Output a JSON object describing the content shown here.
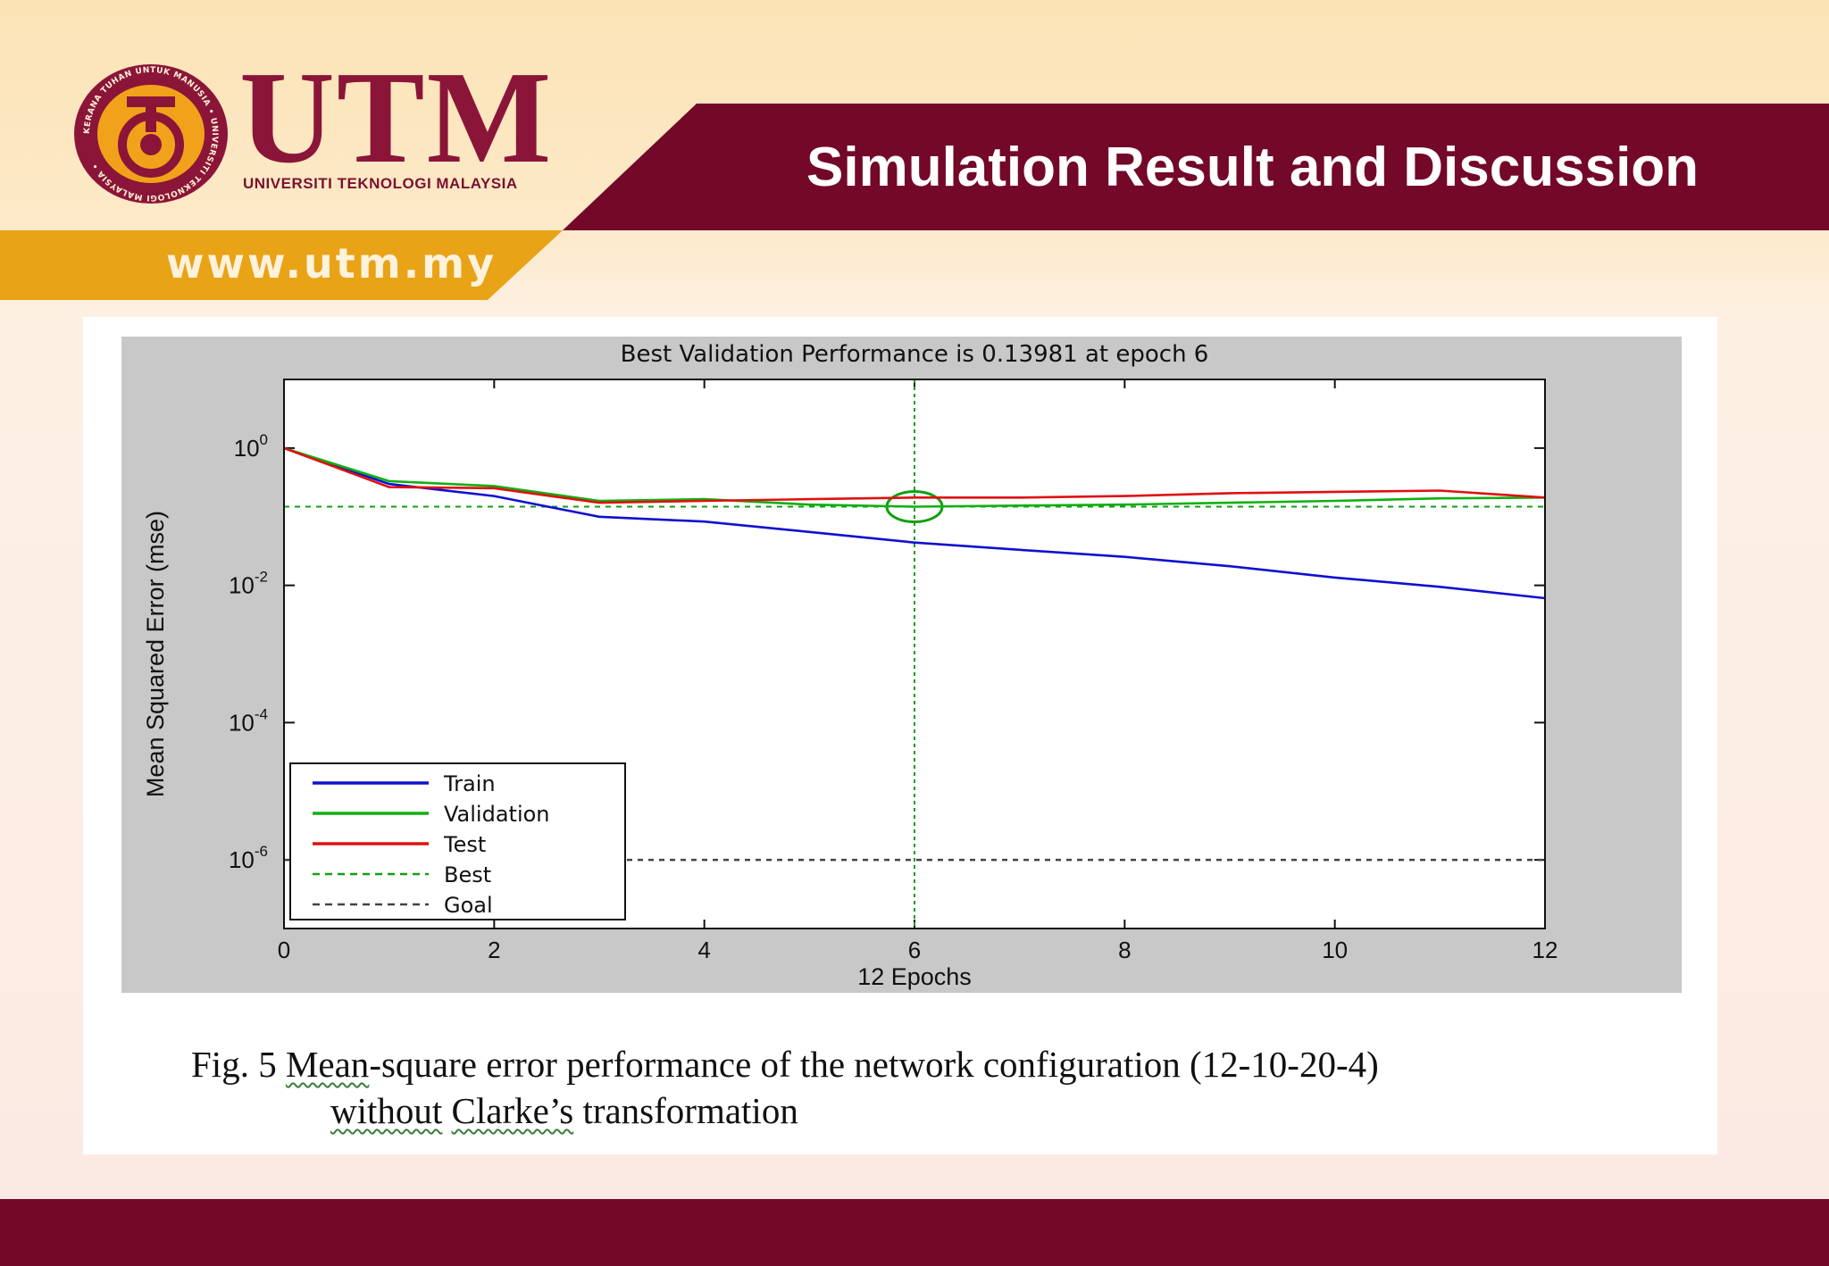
{
  "slide": {
    "title": "Simulation Result and Discussion",
    "website": "www.utm.my",
    "logo": {
      "wordmark": "UTM",
      "university_name": "UNIVERSITI TEKNOLOGI MALAYSIA",
      "seal_text": "KERANA TUHAN UNTUK MANUSIA • UNIVERSITI TEKNOLOGI MALAYSIA"
    },
    "colors": {
      "maroon": "#730829",
      "gold": "#e8a317",
      "cream": "#fde9c7"
    }
  },
  "caption": {
    "fig_label": "Fig. 5",
    "line1_word1": "Mean",
    "line1_rest": "-square error performance of the network configuration (12-10-20-4)",
    "line2_word1": "without",
    "line2_word2": "Clarke’s",
    "line2_rest": "transformation"
  },
  "chart_data": {
    "type": "line",
    "title": "Best Validation Performance is 0.13981 at epoch 6",
    "xlabel": "12 Epochs",
    "ylabel": "Mean Squared Error  (mse)",
    "xlim": [
      0,
      12
    ],
    "ylim": [
      1e-07,
      10
    ],
    "yscale": "log",
    "xticks": [
      "0",
      "2",
      "4",
      "6",
      "8",
      "10",
      "12"
    ],
    "yticks": [
      {
        "value": 1,
        "base": "10",
        "exp": "0"
      },
      {
        "value": 0.01,
        "base": "10",
        "exp": "-2"
      },
      {
        "value": 0.0001,
        "base": "10",
        "exp": "-4"
      },
      {
        "value": 1e-06,
        "base": "10",
        "exp": "-6"
      }
    ],
    "grid": false,
    "legend_position": "bottom-left",
    "x": [
      0,
      1,
      2,
      3,
      4,
      5,
      6,
      7,
      8,
      9,
      10,
      11,
      12
    ],
    "series": [
      {
        "name": "Train",
        "color": "#1010d0",
        "dash": "solid",
        "values": [
          1.0,
          0.3,
          0.2,
          0.1,
          0.085,
          0.06,
          0.042,
          0.033,
          0.026,
          0.019,
          0.013,
          0.0095,
          0.0065
        ]
      },
      {
        "name": "Validation",
        "color": "#10b010",
        "dash": "solid",
        "values": [
          1.0,
          0.33,
          0.28,
          0.17,
          0.18,
          0.15,
          0.14,
          0.145,
          0.15,
          0.16,
          0.17,
          0.185,
          0.19
        ]
      },
      {
        "name": "Test",
        "color": "#e01010",
        "dash": "solid",
        "values": [
          1.0,
          0.27,
          0.26,
          0.16,
          0.17,
          0.18,
          0.19,
          0.19,
          0.2,
          0.22,
          0.23,
          0.24,
          0.19
        ]
      },
      {
        "name": "Best",
        "color": "#10a010",
        "dash": "dashed",
        "kind": "crosshair",
        "x": 6,
        "y": 0.13981
      },
      {
        "name": "Goal",
        "color": "#444444",
        "dash": "dashed",
        "kind": "hline",
        "y": 1e-06
      }
    ]
  }
}
